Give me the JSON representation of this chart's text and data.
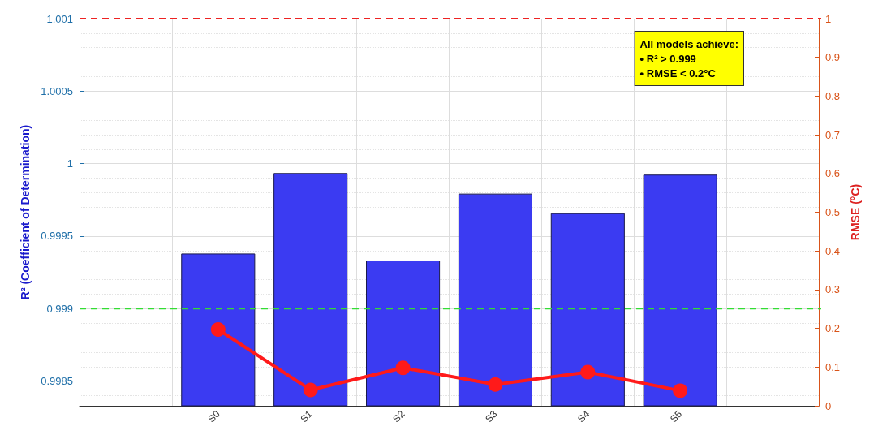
{
  "chart_data": {
    "type": "bar",
    "ylabel": "R² (Coefficient of Determination)",
    "y2label": "RMSE (°C)",
    "categories": [
      null,
      "S0",
      "S1",
      "S2",
      "S3",
      "S4",
      "S5",
      null
    ],
    "series": [
      {
        "color": "#3b3bf2",
        "values": [
          null,
          0.99938,
          0.999935,
          0.999332,
          0.999793,
          0.999658,
          0.999924,
          null
        ]
      },
      {
        "type": "line",
        "axis": "y2",
        "color": "#ff1a1a",
        "values": [
          null,
          0.197,
          0.041,
          0.098,
          0.055,
          0.087,
          0.039,
          null
        ]
      }
    ],
    "ylim": [
      0.99833,
      1.001
    ],
    "yticks": [
      0.9985,
      0.999,
      0.9995,
      1,
      1.0005,
      1.001
    ],
    "y2lim": [
      0,
      1
    ],
    "y2ticks": [
      0,
      0.1,
      0.2,
      0.3,
      0.4,
      0.5,
      0.6,
      0.7,
      0.8,
      0.9,
      1
    ],
    "ref_lines": [
      {
        "axis": "y",
        "value": 0.999,
        "color": "#33dd33",
        "line_style": "dashed"
      },
      {
        "axis": "y2",
        "value": 1,
        "color": "#ee2222",
        "line_style": "dashed"
      }
    ],
    "annotations": [
      "All models achieve:",
      "• R² > 0.999",
      "• RMSE < 0.2°C"
    ],
    "grid": true,
    "marker": "circle"
  }
}
